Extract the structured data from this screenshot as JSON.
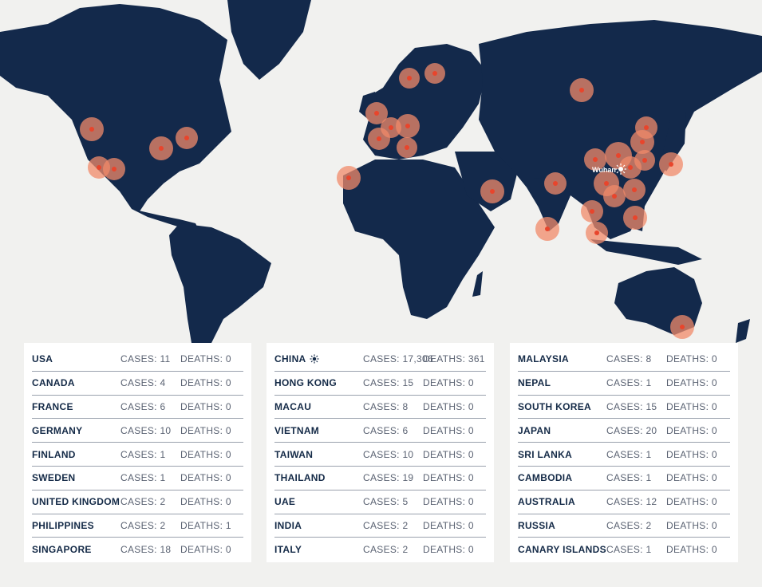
{
  "map": {
    "label": "Wuhan",
    "colors": {
      "land": "#13294b",
      "ocean": "#f1f1ef",
      "marker": "#e8452c",
      "halo": "#f08a6a"
    }
  },
  "tables": [
    {
      "rows": [
        {
          "country": "USA",
          "cases": "CASES: 11",
          "deaths": "DEATHS: 0"
        },
        {
          "country": "CANADA",
          "cases": "CASES: 4",
          "deaths": "DEATHS: 0"
        },
        {
          "country": "FRANCE",
          "cases": "CASES: 6",
          "deaths": "DEATHS: 0"
        },
        {
          "country": "GERMANY",
          "cases": "CASES: 10",
          "deaths": "DEATHS: 0"
        },
        {
          "country": "FINLAND",
          "cases": "CASES: 1",
          "deaths": "DEATHS: 0"
        },
        {
          "country": "SWEDEN",
          "cases": "CASES: 1",
          "deaths": "DEATHS: 0"
        },
        {
          "country": "UNITED KINGDOM",
          "cases": "CASES: 2",
          "deaths": "DEATHS: 0"
        },
        {
          "country": "PHILIPPINES",
          "cases": "CASES: 2",
          "deaths": "DEATHS: 1"
        },
        {
          "country": "SINGAPORE",
          "cases": "CASES: 18",
          "deaths": "DEATHS: 0"
        }
      ]
    },
    {
      "rows": [
        {
          "country": "CHINA",
          "cases": "CASES: 17,306",
          "deaths": "DEATHS: 361",
          "origin": true
        },
        {
          "country": "HONG KONG",
          "cases": "CASES: 15",
          "deaths": "DEATHS: 0"
        },
        {
          "country": "MACAU",
          "cases": "CASES: 8",
          "deaths": "DEATHS: 0"
        },
        {
          "country": "VIETNAM",
          "cases": "CASES: 6",
          "deaths": "DEATHS: 0"
        },
        {
          "country": "TAIWAN",
          "cases": "CASES: 10",
          "deaths": "DEATHS: 0"
        },
        {
          "country": "THAILAND",
          "cases": "CASES: 19",
          "deaths": "DEATHS: 0"
        },
        {
          "country": "UAE",
          "cases": "CASES: 5",
          "deaths": "DEATHS: 0"
        },
        {
          "country": "INDIA",
          "cases": "CASES: 2",
          "deaths": "DEATHS: 0"
        },
        {
          "country": "ITALY",
          "cases": "CASES: 2",
          "deaths": "DEATHS: 0"
        }
      ]
    },
    {
      "rows": [
        {
          "country": "MALAYSIA",
          "cases": "CASES: 8",
          "deaths": "DEATHS: 0"
        },
        {
          "country": "NEPAL",
          "cases": "CASES: 1",
          "deaths": "DEATHS: 0"
        },
        {
          "country": "SOUTH KOREA",
          "cases": "CASES: 15",
          "deaths": "DEATHS: 0"
        },
        {
          "country": "JAPAN",
          "cases": "CASES: 20",
          "deaths": "DEATHS: 0"
        },
        {
          "country": "SRI LANKA",
          "cases": "CASES: 1",
          "deaths": "DEATHS: 0"
        },
        {
          "country": "CAMBODIA",
          "cases": "CASES: 1",
          "deaths": "DEATHS: 0"
        },
        {
          "country": "AUSTRALIA",
          "cases": "CASES: 12",
          "deaths": "DEATHS: 0"
        },
        {
          "country": "RUSSIA",
          "cases": "CASES: 2",
          "deaths": "DEATHS: 0"
        },
        {
          "country": "CANARY ISLANDS",
          "cases": "CASES: 1",
          "deaths": "DEATHS: 0"
        }
      ]
    }
  ]
}
